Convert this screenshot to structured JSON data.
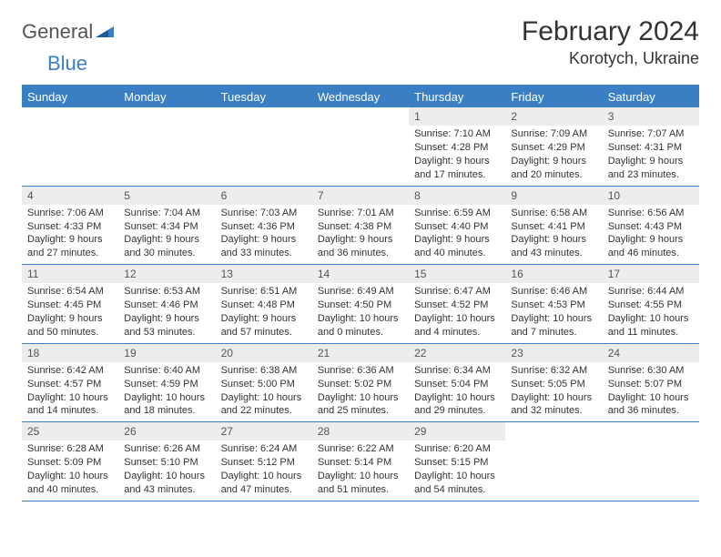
{
  "logo": {
    "general": "General",
    "blue": "Blue"
  },
  "title": "February 2024",
  "location": "Korotych, Ukraine",
  "accent_color": "#3a7fc4",
  "daynum_bg": "#ededed",
  "weekdays": [
    "Sunday",
    "Monday",
    "Tuesday",
    "Wednesday",
    "Thursday",
    "Friday",
    "Saturday"
  ],
  "weeks": [
    [
      null,
      null,
      null,
      null,
      {
        "n": "1",
        "sr": "Sunrise: 7:10 AM",
        "ss": "Sunset: 4:28 PM",
        "dl": "Daylight: 9 hours and 17 minutes."
      },
      {
        "n": "2",
        "sr": "Sunrise: 7:09 AM",
        "ss": "Sunset: 4:29 PM",
        "dl": "Daylight: 9 hours and 20 minutes."
      },
      {
        "n": "3",
        "sr": "Sunrise: 7:07 AM",
        "ss": "Sunset: 4:31 PM",
        "dl": "Daylight: 9 hours and 23 minutes."
      }
    ],
    [
      {
        "n": "4",
        "sr": "Sunrise: 7:06 AM",
        "ss": "Sunset: 4:33 PM",
        "dl": "Daylight: 9 hours and 27 minutes."
      },
      {
        "n": "5",
        "sr": "Sunrise: 7:04 AM",
        "ss": "Sunset: 4:34 PM",
        "dl": "Daylight: 9 hours and 30 minutes."
      },
      {
        "n": "6",
        "sr": "Sunrise: 7:03 AM",
        "ss": "Sunset: 4:36 PM",
        "dl": "Daylight: 9 hours and 33 minutes."
      },
      {
        "n": "7",
        "sr": "Sunrise: 7:01 AM",
        "ss": "Sunset: 4:38 PM",
        "dl": "Daylight: 9 hours and 36 minutes."
      },
      {
        "n": "8",
        "sr": "Sunrise: 6:59 AM",
        "ss": "Sunset: 4:40 PM",
        "dl": "Daylight: 9 hours and 40 minutes."
      },
      {
        "n": "9",
        "sr": "Sunrise: 6:58 AM",
        "ss": "Sunset: 4:41 PM",
        "dl": "Daylight: 9 hours and 43 minutes."
      },
      {
        "n": "10",
        "sr": "Sunrise: 6:56 AM",
        "ss": "Sunset: 4:43 PM",
        "dl": "Daylight: 9 hours and 46 minutes."
      }
    ],
    [
      {
        "n": "11",
        "sr": "Sunrise: 6:54 AM",
        "ss": "Sunset: 4:45 PM",
        "dl": "Daylight: 9 hours and 50 minutes."
      },
      {
        "n": "12",
        "sr": "Sunrise: 6:53 AM",
        "ss": "Sunset: 4:46 PM",
        "dl": "Daylight: 9 hours and 53 minutes."
      },
      {
        "n": "13",
        "sr": "Sunrise: 6:51 AM",
        "ss": "Sunset: 4:48 PM",
        "dl": "Daylight: 9 hours and 57 minutes."
      },
      {
        "n": "14",
        "sr": "Sunrise: 6:49 AM",
        "ss": "Sunset: 4:50 PM",
        "dl": "Daylight: 10 hours and 0 minutes."
      },
      {
        "n": "15",
        "sr": "Sunrise: 6:47 AM",
        "ss": "Sunset: 4:52 PM",
        "dl": "Daylight: 10 hours and 4 minutes."
      },
      {
        "n": "16",
        "sr": "Sunrise: 6:46 AM",
        "ss": "Sunset: 4:53 PM",
        "dl": "Daylight: 10 hours and 7 minutes."
      },
      {
        "n": "17",
        "sr": "Sunrise: 6:44 AM",
        "ss": "Sunset: 4:55 PM",
        "dl": "Daylight: 10 hours and 11 minutes."
      }
    ],
    [
      {
        "n": "18",
        "sr": "Sunrise: 6:42 AM",
        "ss": "Sunset: 4:57 PM",
        "dl": "Daylight: 10 hours and 14 minutes."
      },
      {
        "n": "19",
        "sr": "Sunrise: 6:40 AM",
        "ss": "Sunset: 4:59 PM",
        "dl": "Daylight: 10 hours and 18 minutes."
      },
      {
        "n": "20",
        "sr": "Sunrise: 6:38 AM",
        "ss": "Sunset: 5:00 PM",
        "dl": "Daylight: 10 hours and 22 minutes."
      },
      {
        "n": "21",
        "sr": "Sunrise: 6:36 AM",
        "ss": "Sunset: 5:02 PM",
        "dl": "Daylight: 10 hours and 25 minutes."
      },
      {
        "n": "22",
        "sr": "Sunrise: 6:34 AM",
        "ss": "Sunset: 5:04 PM",
        "dl": "Daylight: 10 hours and 29 minutes."
      },
      {
        "n": "23",
        "sr": "Sunrise: 6:32 AM",
        "ss": "Sunset: 5:05 PM",
        "dl": "Daylight: 10 hours and 32 minutes."
      },
      {
        "n": "24",
        "sr": "Sunrise: 6:30 AM",
        "ss": "Sunset: 5:07 PM",
        "dl": "Daylight: 10 hours and 36 minutes."
      }
    ],
    [
      {
        "n": "25",
        "sr": "Sunrise: 6:28 AM",
        "ss": "Sunset: 5:09 PM",
        "dl": "Daylight: 10 hours and 40 minutes."
      },
      {
        "n": "26",
        "sr": "Sunrise: 6:26 AM",
        "ss": "Sunset: 5:10 PM",
        "dl": "Daylight: 10 hours and 43 minutes."
      },
      {
        "n": "27",
        "sr": "Sunrise: 6:24 AM",
        "ss": "Sunset: 5:12 PM",
        "dl": "Daylight: 10 hours and 47 minutes."
      },
      {
        "n": "28",
        "sr": "Sunrise: 6:22 AM",
        "ss": "Sunset: 5:14 PM",
        "dl": "Daylight: 10 hours and 51 minutes."
      },
      {
        "n": "29",
        "sr": "Sunrise: 6:20 AM",
        "ss": "Sunset: 5:15 PM",
        "dl": "Daylight: 10 hours and 54 minutes."
      },
      null,
      null
    ]
  ]
}
